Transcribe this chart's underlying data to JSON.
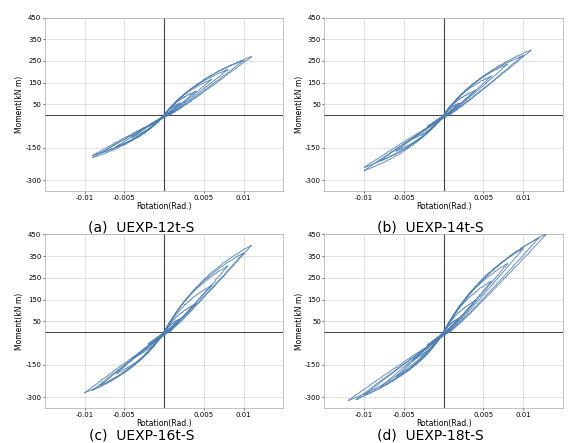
{
  "subplots": [
    {
      "label": "(a)  UEXP-12t-S",
      "loops": [
        {
          "rot_max": 0.002,
          "mom_max": 55,
          "rot_min": -0.002,
          "mom_min": -50
        },
        {
          "rot_max": 0.004,
          "mom_max": 110,
          "rot_min": -0.004,
          "mom_min": -100
        },
        {
          "rot_max": 0.006,
          "mom_max": 165,
          "rot_min": -0.006,
          "mom_min": -145
        },
        {
          "rot_max": 0.008,
          "mom_max": 210,
          "rot_min": -0.008,
          "mom_min": -175
        },
        {
          "rot_max": 0.01,
          "mom_max": 252,
          "rot_min": -0.009,
          "mom_min": -185
        },
        {
          "rot_max": 0.011,
          "mom_max": 270,
          "rot_min": -0.009,
          "mom_min": -195
        }
      ]
    },
    {
      "label": "(b)  UEXP-14t-S",
      "loops": [
        {
          "rot_max": 0.002,
          "mom_max": 55,
          "rot_min": -0.002,
          "mom_min": -50
        },
        {
          "rot_max": 0.004,
          "mom_max": 115,
          "rot_min": -0.004,
          "mom_min": -110
        },
        {
          "rot_max": 0.006,
          "mom_max": 180,
          "rot_min": -0.006,
          "mom_min": -165
        },
        {
          "rot_max": 0.008,
          "mom_max": 235,
          "rot_min": -0.008,
          "mom_min": -210
        },
        {
          "rot_max": 0.01,
          "mom_max": 275,
          "rot_min": -0.01,
          "mom_min": -240
        },
        {
          "rot_max": 0.011,
          "mom_max": 300,
          "rot_min": -0.01,
          "mom_min": -255
        }
      ]
    },
    {
      "label": "(c)  UEXP-16t-S",
      "loops": [
        {
          "rot_max": 0.002,
          "mom_max": 60,
          "rot_min": -0.002,
          "mom_min": -55
        },
        {
          "rot_max": 0.004,
          "mom_max": 130,
          "rot_min": -0.004,
          "mom_min": -120
        },
        {
          "rot_max": 0.006,
          "mom_max": 215,
          "rot_min": -0.006,
          "mom_min": -190
        },
        {
          "rot_max": 0.008,
          "mom_max": 305,
          "rot_min": -0.008,
          "mom_min": -245
        },
        {
          "rot_max": 0.01,
          "mom_max": 365,
          "rot_min": -0.009,
          "mom_min": -268
        },
        {
          "rot_max": 0.011,
          "mom_max": 400,
          "rot_min": -0.01,
          "mom_min": -280
        }
      ]
    },
    {
      "label": "(d)  UEXP-18t-S",
      "loops": [
        {
          "rot_max": 0.002,
          "mom_max": 65,
          "rot_min": -0.002,
          "mom_min": -60
        },
        {
          "rot_max": 0.004,
          "mom_max": 145,
          "rot_min": -0.004,
          "mom_min": -130
        },
        {
          "rot_max": 0.006,
          "mom_max": 235,
          "rot_min": -0.006,
          "mom_min": -205
        },
        {
          "rot_max": 0.008,
          "mom_max": 315,
          "rot_min": -0.008,
          "mom_min": -255
        },
        {
          "rot_max": 0.01,
          "mom_max": 385,
          "rot_min": -0.01,
          "mom_min": -290
        },
        {
          "rot_max": 0.012,
          "mom_max": 435,
          "rot_min": -0.011,
          "mom_min": -310
        },
        {
          "rot_max": 0.013,
          "mom_max": 455,
          "rot_min": -0.012,
          "mom_min": -315
        }
      ]
    }
  ],
  "xlabel": "Rotation(Rad.)",
  "ylabel": "Moment(kN·m)",
  "xlim": [
    -0.015,
    0.015
  ],
  "ylim": [
    -350,
    450
  ],
  "line_color": "#4a7eb5",
  "line_width": 0.7,
  "label_fontsize": 10,
  "tick_fontsize": 5,
  "axis_label_fontsize": 5.5,
  "background_color": "#ffffff",
  "grid_color": "#cccccc"
}
